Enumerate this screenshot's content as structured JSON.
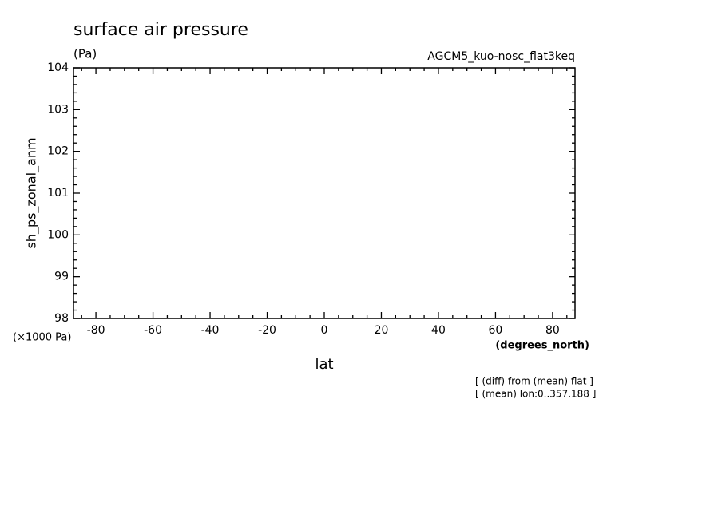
{
  "chart_data": {
    "type": "line",
    "title": "surface air pressure",
    "units": "(Pa)",
    "subtitle": "AGCM5_kuo-nosc_flat3keq",
    "ylabel": "sh_ps_zonal_anm",
    "yunit": "(×1000 Pa)",
    "xlabel": "lat",
    "xunit": "(degrees_north)",
    "notes": [
      "[ (diff) from (mean) flat ]",
      "[ (mean) lon:0..357.188 ]"
    ],
    "xlim": [
      -87.86,
      87.86
    ],
    "ylim": [
      98,
      104
    ],
    "xticks": [
      -80,
      -60,
      -40,
      -20,
      0,
      20,
      40,
      60,
      80
    ],
    "yticks": [
      98,
      99,
      100,
      101,
      102,
      103,
      104
    ],
    "xminorticks": [
      -85,
      -75,
      -70,
      -65,
      -55,
      -50,
      -45,
      -35,
      -30,
      -25,
      -15,
      -10,
      -5,
      5,
      10,
      15,
      25,
      30,
      35,
      45,
      50,
      55,
      65,
      70,
      75,
      85
    ],
    "yminorticks": [
      98.2,
      98.4,
      98.6,
      98.8,
      99.2,
      99.4,
      99.6,
      99.8,
      100.2,
      100.4,
      100.6,
      100.8,
      101.2,
      101.4,
      101.6,
      101.8,
      102.2,
      102.4,
      102.6,
      102.8,
      103.2,
      103.4,
      103.6,
      103.8
    ],
    "series": []
  }
}
